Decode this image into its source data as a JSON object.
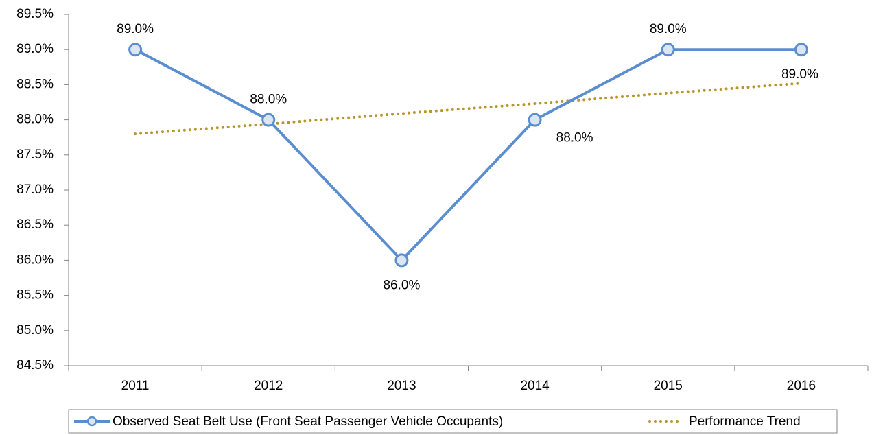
{
  "chart_data": {
    "type": "line",
    "categories": [
      "2011",
      "2012",
      "2013",
      "2014",
      "2015",
      "2016"
    ],
    "series": [
      {
        "name": "Observed Seat Belt Use (Front Seat Passenger Vehicle Occupants)",
        "color": "#5b8ed0",
        "marker_fill": "#dce6f2",
        "values": [
          89.0,
          88.0,
          86.0,
          88.0,
          89.0,
          89.0
        ],
        "value_labels": [
          "89.0%",
          "88.0%",
          "86.0%",
          "88.0%",
          "89.0%",
          "89.0%"
        ]
      },
      {
        "name": "Performance Trend",
        "color": "#b8962e",
        "style": "dotted",
        "values": [
          87.8,
          87.94,
          88.09,
          88.23,
          88.38,
          88.52
        ]
      }
    ],
    "ylim": [
      84.5,
      89.5
    ],
    "yticks": [
      {
        "value": 84.5,
        "label": "84.5%"
      },
      {
        "value": 85.0,
        "label": "85.0%"
      },
      {
        "value": 85.5,
        "label": "85.5%"
      },
      {
        "value": 86.0,
        "label": "86.0%"
      },
      {
        "value": 86.5,
        "label": "86.5%"
      },
      {
        "value": 87.0,
        "label": "87.0%"
      },
      {
        "value": 87.5,
        "label": "87.5%"
      },
      {
        "value": 88.0,
        "label": "88.0%"
      },
      {
        "value": 88.5,
        "label": "88.5%"
      },
      {
        "value": 89.0,
        "label": "89.0%"
      },
      {
        "value": 89.5,
        "label": "89.5%"
      }
    ],
    "grid": false,
    "legend": "bottom"
  }
}
